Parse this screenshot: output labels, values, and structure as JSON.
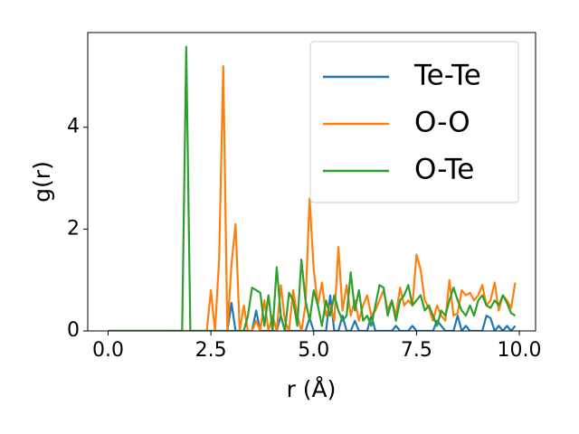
{
  "chart_data": {
    "type": "line",
    "xlabel": "r (Å)",
    "ylabel": "g(r)",
    "x": [
      0.0,
      0.1,
      0.2,
      0.3,
      0.4,
      0.5,
      0.6,
      0.7,
      0.8,
      0.9,
      1.0,
      1.1,
      1.2,
      1.3,
      1.4,
      1.5,
      1.6,
      1.7,
      1.8,
      1.9,
      2.0,
      2.1,
      2.2,
      2.3,
      2.4,
      2.5,
      2.6,
      2.7,
      2.8,
      2.9,
      3.0,
      3.1,
      3.2,
      3.3,
      3.4,
      3.5,
      3.6,
      3.7,
      3.8,
      3.9,
      4.0,
      4.1,
      4.2,
      4.3,
      4.4,
      4.5,
      4.6,
      4.7,
      4.8,
      4.9,
      5.0,
      5.1,
      5.2,
      5.3,
      5.4,
      5.5,
      5.6,
      5.7,
      5.8,
      5.9,
      6.0,
      6.1,
      6.2,
      6.3,
      6.4,
      6.5,
      6.6,
      6.7,
      6.8,
      6.9,
      7.0,
      7.1,
      7.2,
      7.3,
      7.4,
      7.5,
      7.6,
      7.7,
      7.8,
      7.9,
      8.0,
      8.1,
      8.2,
      8.3,
      8.4,
      8.5,
      8.6,
      8.7,
      8.8,
      8.9,
      9.0,
      9.1,
      9.2,
      9.3,
      9.4,
      9.5,
      9.6,
      9.7,
      9.8,
      9.9
    ],
    "series": [
      {
        "name": "Te-Te",
        "color": "#1f77b4",
        "values": [
          0,
          0,
          0,
          0,
          0,
          0,
          0,
          0,
          0,
          0,
          0,
          0,
          0,
          0,
          0,
          0,
          0,
          0,
          0,
          0,
          0,
          0,
          0,
          0,
          0,
          0,
          0,
          0,
          0,
          0,
          0.55,
          0,
          0,
          0,
          0,
          0,
          0.4,
          0,
          0,
          0,
          0,
          0,
          0.3,
          0,
          0,
          0,
          0,
          0,
          0,
          0.25,
          0,
          0,
          0,
          0,
          0.7,
          0,
          0,
          0.3,
          0,
          0,
          0.2,
          0,
          0,
          0,
          0.3,
          0,
          0,
          0,
          0,
          0,
          0.1,
          0,
          0,
          0,
          0.1,
          0,
          0,
          0,
          0,
          0,
          0.2,
          0.1,
          0,
          0,
          0,
          0.3,
          0,
          0.1,
          0,
          0,
          0,
          0,
          0.3,
          0.25,
          0,
          0.1,
          0,
          0.1,
          0,
          0.1
        ]
      },
      {
        "name": "O-O",
        "color": "#ff7f0e",
        "values": [
          0,
          0,
          0,
          0,
          0,
          0,
          0,
          0,
          0,
          0,
          0,
          0,
          0,
          0,
          0,
          0,
          0,
          0,
          0,
          0,
          0,
          0,
          0,
          0,
          0,
          0.8,
          0,
          1.4,
          5.2,
          0,
          1.3,
          2.1,
          0,
          0.5,
          0,
          0,
          0.2,
          0,
          0.6,
          0,
          0.3,
          0,
          0.9,
          0.2,
          0,
          0.8,
          0.3,
          0,
          0.5,
          2.6,
          1.2,
          0.5,
          0.95,
          0.3,
          0.5,
          0.2,
          1.65,
          0.4,
          0.9,
          0.3,
          0.6,
          0.2,
          0.5,
          0.7,
          0.3,
          0.4,
          0.6,
          0.8,
          0.4,
          0.6,
          0.3,
          0.85,
          0.5,
          0.6,
          0.5,
          1.5,
          1.2,
          0.6,
          0.45,
          0.2,
          0.5,
          0.3,
          0.2,
          1.0,
          0.3,
          0.35,
          0.8,
          0.7,
          0.75,
          0.6,
          0.7,
          0.9,
          0.5,
          0.6,
          0.95,
          0.4,
          0.7,
          0.6,
          0.45,
          0.95
        ]
      },
      {
        "name": "O-Te",
        "color": "#2ca02c",
        "values": [
          0,
          0,
          0,
          0,
          0,
          0,
          0,
          0,
          0,
          0,
          0,
          0,
          0,
          0,
          0,
          0,
          0,
          0,
          0,
          5.58,
          0,
          0,
          0,
          0,
          0,
          0,
          0,
          0,
          0,
          0,
          0,
          0,
          0,
          0,
          0.3,
          0.85,
          0.8,
          0.75,
          0.1,
          0.7,
          0,
          1.25,
          0.3,
          0,
          0.75,
          0.6,
          0.1,
          1.4,
          0.6,
          0.2,
          0.8,
          0.5,
          0.1,
          0.6,
          0.3,
          0.7,
          0.4,
          0.2,
          0.3,
          1.15,
          0.4,
          0.8,
          0.2,
          0.3,
          0.1,
          0.5,
          0.9,
          0.85,
          0.3,
          0.6,
          0.2,
          0.6,
          0.7,
          0.9,
          0.5,
          0.6,
          0.7,
          0.4,
          0.5,
          0.3,
          0.1,
          0.4,
          0.3,
          0.6,
          0.85,
          0.6,
          0.4,
          0.3,
          0.5,
          0.3,
          0.6,
          0.7,
          0.5,
          0.45,
          0.6,
          0.5,
          0.7,
          0.55,
          0.35,
          0.3
        ]
      }
    ],
    "xlim": [
      -0.495,
      10.395
    ],
    "ylim": [
      0,
      5.86
    ],
    "xticks": [
      {
        "value": 0,
        "label": "0.0"
      },
      2.5,
      {
        "value": 5,
        "label": "5.0"
      },
      7.5,
      {
        "value": 10,
        "label": "10.0"
      }
    ],
    "yticks": [
      0,
      2,
      4
    ],
    "legend": "upper right",
    "grid": false
  }
}
